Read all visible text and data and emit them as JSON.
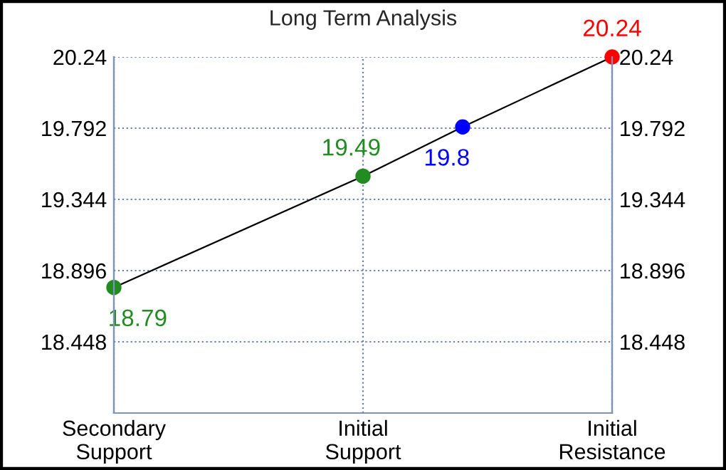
{
  "chart_data": {
    "type": "line",
    "title": "Long Term Analysis",
    "categories": [
      "Secondary\nSupport",
      null,
      null,
      null,
      null,
      "Initial\nSupport",
      null,
      null,
      null,
      null,
      "Initial\nResistance"
    ],
    "series": [
      {
        "color": "#000000",
        "colors": [
          "#228b22",
          null,
          null,
          null,
          null,
          "#228b22",
          null,
          "#0000ff",
          null,
          null,
          "#ff0000"
        ],
        "values": [
          18.79,
          null,
          null,
          null,
          null,
          19.49,
          null,
          19.8,
          null,
          null,
          20.24
        ]
      }
    ],
    "ylim": [
      18.0,
      20.24
    ],
    "yticks": [
      18.448,
      18.896,
      19.344,
      19.792,
      20.24
    ],
    "y2lim": [
      18.0,
      20.24
    ],
    "y2ticks": [
      18.448,
      18.896,
      19.344,
      19.792,
      20.24
    ],
    "data_labels": true,
    "marker": "circle",
    "line_style": "solid",
    "grid": true,
    "legend": false
  }
}
